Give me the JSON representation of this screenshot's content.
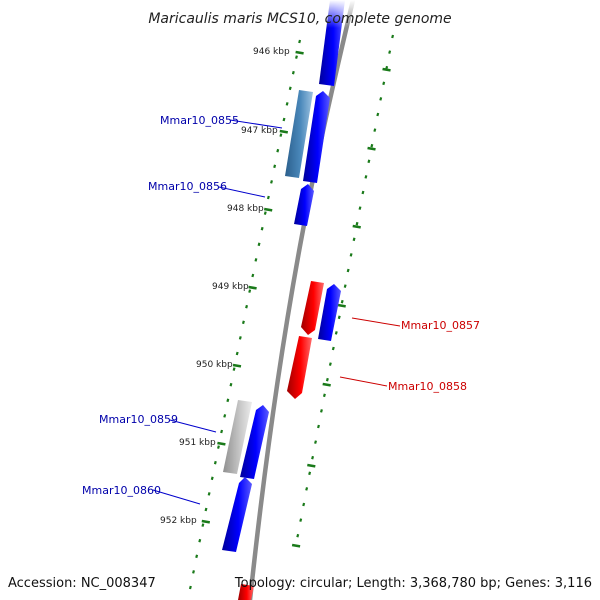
{
  "title": "Maricaulis maris MCS10, complete genome",
  "footer": {
    "accession": "Accession: NC_008347",
    "topology": "Topology: circular; Length: 3,368,780 bp; Genes: 3,116"
  },
  "colors": {
    "forward_gene": "#0000ee",
    "reverse_gene": "#ee0000",
    "other_gene": "#3b7bb0",
    "pseudo_gene": "#b8b8b8",
    "backbone": "#888888",
    "forward_label": "#0000aa",
    "reverse_label": "#cc0000",
    "tick": "#1a7a1a"
  },
  "ticks": [
    {
      "kbp": 946,
      "label": "946 kbp"
    },
    {
      "kbp": 947,
      "label": "947 kbp"
    },
    {
      "kbp": 948,
      "label": "948 kbp"
    },
    {
      "kbp": 949,
      "label": "949 kbp"
    },
    {
      "kbp": 950,
      "label": "950 kbp"
    },
    {
      "kbp": 951,
      "label": "951 kbp"
    },
    {
      "kbp": 952,
      "label": "952 kbp"
    }
  ],
  "genes": [
    {
      "name": "Mmar10_0855",
      "strand": "forward",
      "labeled": true
    },
    {
      "name": "Mmar10_0856",
      "strand": "forward",
      "labeled": true
    },
    {
      "name": "Mmar10_0857",
      "strand": "reverse",
      "labeled": true
    },
    {
      "name": "Mmar10_0858",
      "strand": "reverse",
      "labeled": true
    },
    {
      "name": "Mmar10_0859",
      "strand": "forward",
      "labeled": true
    },
    {
      "name": "Mmar10_0860",
      "strand": "forward",
      "labeled": true
    }
  ]
}
